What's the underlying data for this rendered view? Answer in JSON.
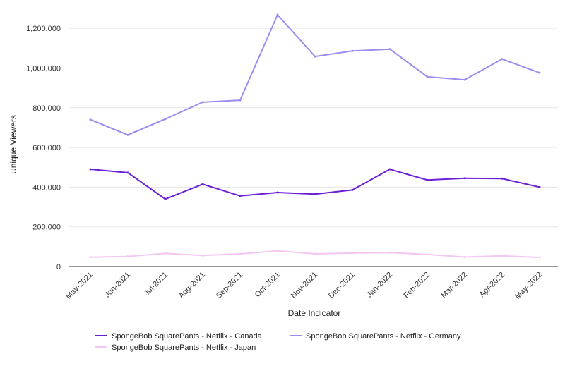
{
  "chart_data": {
    "type": "line",
    "xlabel": "Date Indicator",
    "ylabel": "Unique Viewers",
    "ylim": [
      0,
      1300000
    ],
    "yticks": [
      0,
      200000,
      400000,
      600000,
      800000,
      1000000,
      1200000
    ],
    "ytick_labels": [
      "0",
      "200,000",
      "400,000",
      "600,000",
      "800,000",
      "1,000,000",
      "1,200,000"
    ],
    "categories": [
      "May-2021",
      "Jun-2021",
      "Jul-2021",
      "Aug-2021",
      "Sep-2021",
      "Oct-2021",
      "Nov-2021",
      "Dec-2021",
      "Jan-2022",
      "Feb-2022",
      "Mar-2022",
      "Apr-2022",
      "May-2022"
    ],
    "grid": true,
    "legend_position": "bottom",
    "series": [
      {
        "name": "SpongeBob SquarePants - Netflix - Canada",
        "color": "#6a1fd6",
        "values": [
          490000,
          473000,
          340000,
          415000,
          356000,
          373000,
          365000,
          386000,
          490000,
          436000,
          445000,
          443000,
          400000
        ]
      },
      {
        "name": "SpongeBob SquarePants - Netflix - Germany",
        "color": "#9b8cf0",
        "values": [
          740000,
          663000,
          743000,
          828000,
          838000,
          1268000,
          1058000,
          1086000,
          1095000,
          956000,
          941000,
          1045000,
          976000
        ]
      },
      {
        "name": "SpongeBob SquarePants - Netflix - Japan",
        "color": "#f4c6f4",
        "values": [
          47000,
          51000,
          66000,
          56000,
          64000,
          79000,
          64000,
          68000,
          70000,
          61000,
          48000,
          54000,
          46000
        ]
      }
    ]
  }
}
